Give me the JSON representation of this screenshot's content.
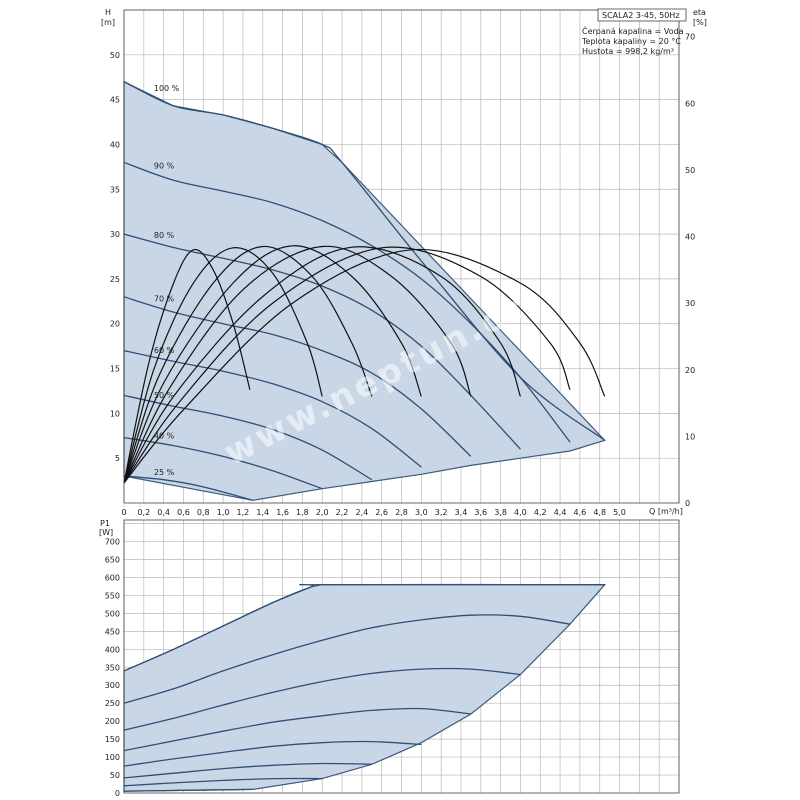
{
  "chart_data": [
    {
      "type": "line",
      "name": "head-chart",
      "xlabel": "Q [m³/h]",
      "ylabel_line1": "H",
      "ylabel_line2": "[m]",
      "y2label_line1": "eta",
      "y2label_line2": "[%]",
      "xlim": [
        0,
        5.6
      ],
      "ylim": [
        0,
        55
      ],
      "y2lim": [
        0,
        74
      ],
      "xticks": [
        "0",
        "0,2",
        "0,4",
        "0,6",
        "0,8",
        "1,0",
        "1,2",
        "1,4",
        "1,6",
        "1,8",
        "2,0",
        "2,2",
        "2,4",
        "2,6",
        "2,8",
        "3,0",
        "3,2",
        "3,4",
        "3,6",
        "3,8",
        "4,0",
        "4,2",
        "4,4",
        "4,6",
        "4,8",
        "5,0"
      ],
      "yticks": [
        "5",
        "10",
        "15",
        "20",
        "25",
        "30",
        "35",
        "40",
        "45",
        "50"
      ],
      "y2ticks": [
        "0",
        "10",
        "20",
        "30",
        "40",
        "50",
        "60",
        "70"
      ],
      "info_box": {
        "title": "SCALA2 3-45, 50Hz",
        "lines": [
          "Čerpaná kapalina = Voda",
          "Teplota kapaliny = 20 °C",
          "Hustota = 998,2 kg/m³"
        ]
      },
      "envelope": {
        "top": [
          [
            0,
            47
          ],
          [
            0.5,
            44.3
          ],
          [
            1.0,
            43.3
          ],
          [
            1.5,
            41.8
          ],
          [
            2.0,
            40
          ],
          [
            2.2,
            38
          ],
          [
            4.85,
            7
          ]
        ],
        "bottom": [
          [
            0,
            3
          ],
          [
            1.3,
            0.3
          ],
          [
            2.0,
            1.6
          ],
          [
            2.5,
            2.4
          ],
          [
            3.0,
            3.2
          ],
          [
            3.5,
            4.2
          ],
          [
            4.0,
            5.0
          ],
          [
            4.5,
            5.8
          ],
          [
            4.85,
            7
          ]
        ]
      },
      "series": [
        {
          "name": "100 %",
          "points": [
            [
              0,
              47
            ],
            [
              0.5,
              44.3
            ],
            [
              1.0,
              43.3
            ],
            [
              1.5,
              41.8
            ],
            [
              2.0,
              40
            ],
            [
              2.2,
              38
            ],
            [
              3.0,
              27
            ],
            [
              4.0,
              14
            ],
            [
              4.85,
              7
            ]
          ]
        },
        {
          "name": "90 %",
          "points": [
            [
              0,
              38
            ],
            [
              0.5,
              36
            ],
            [
              1.0,
              34.8
            ],
            [
              1.5,
              33.5
            ],
            [
              2.0,
              31.5
            ],
            [
              2.5,
              28.7
            ],
            [
              3.0,
              25
            ],
            [
              3.5,
              20
            ],
            [
              4.0,
              14
            ],
            [
              4.5,
              6.8
            ]
          ]
        },
        {
          "name": "80 %",
          "points": [
            [
              0,
              30
            ],
            [
              0.5,
              28.5
            ],
            [
              1.0,
              27.3
            ],
            [
              1.5,
              26
            ],
            [
              2.0,
              24.2
            ],
            [
              2.5,
              21.5
            ],
            [
              3.0,
              17.5
            ],
            [
              3.5,
              12
            ],
            [
              4.0,
              6
            ]
          ]
        },
        {
          "name": "70 %",
          "points": [
            [
              0,
              23
            ],
            [
              0.5,
              21.3
            ],
            [
              1.0,
              20
            ],
            [
              1.5,
              18.8
            ],
            [
              2.0,
              17
            ],
            [
              2.5,
              14.5
            ],
            [
              3.0,
              10.5
            ],
            [
              3.5,
              5.2
            ]
          ]
        },
        {
          "name": "60 %",
          "points": [
            [
              0,
              17
            ],
            [
              0.5,
              15.8
            ],
            [
              1.0,
              14.7
            ],
            [
              1.5,
              13.3
            ],
            [
              2.0,
              11.3
            ],
            [
              2.5,
              8.3
            ],
            [
              3.0,
              4
            ]
          ]
        },
        {
          "name": "50 %",
          "points": [
            [
              0,
              12
            ],
            [
              0.5,
              10.8
            ],
            [
              1.0,
              9.7
            ],
            [
              1.5,
              8.2
            ],
            [
              2.0,
              5.9
            ],
            [
              2.5,
              2.6
            ]
          ]
        },
        {
          "name": "40 %",
          "points": [
            [
              0,
              7.3
            ],
            [
              0.5,
              6.4
            ],
            [
              1.0,
              5.2
            ],
            [
              1.5,
              3.6
            ],
            [
              2.0,
              1.6
            ]
          ]
        },
        {
          "name": "25 %",
          "points": [
            [
              0,
              3
            ],
            [
              0.4,
              2.6
            ],
            [
              0.8,
              1.8
            ],
            [
              1.3,
              0.3
            ]
          ]
        }
      ],
      "efficiency_curves": [
        [
          [
            0,
            3
          ],
          [
            0.25,
            21
          ],
          [
            0.5,
            33
          ],
          [
            0.7,
            38
          ],
          [
            0.9,
            35
          ],
          [
            1.1,
            27
          ],
          [
            1.27,
            17
          ]
        ],
        [
          [
            0,
            3
          ],
          [
            0.3,
            20
          ],
          [
            0.7,
            33
          ],
          [
            1.1,
            38.3
          ],
          [
            1.5,
            34.5
          ],
          [
            1.85,
            24
          ],
          [
            2.0,
            16
          ]
        ],
        [
          [
            0,
            3
          ],
          [
            0.35,
            19
          ],
          [
            0.9,
            33
          ],
          [
            1.4,
            38.5
          ],
          [
            1.9,
            34
          ],
          [
            2.3,
            24
          ],
          [
            2.5,
            16
          ]
        ],
        [
          [
            0,
            3
          ],
          [
            0.4,
            18
          ],
          [
            1.1,
            33
          ],
          [
            1.7,
            38.6
          ],
          [
            2.3,
            34
          ],
          [
            2.8,
            24
          ],
          [
            3.0,
            16
          ]
        ],
        [
          [
            0,
            3
          ],
          [
            0.45,
            17
          ],
          [
            1.2,
            32
          ],
          [
            2.0,
            38.5
          ],
          [
            2.7,
            34
          ],
          [
            3.3,
            24
          ],
          [
            3.5,
            16
          ]
        ],
        [
          [
            0,
            3
          ],
          [
            0.5,
            16
          ],
          [
            1.4,
            31
          ],
          [
            2.3,
            38.4
          ],
          [
            3.2,
            34
          ],
          [
            3.8,
            24
          ],
          [
            4.0,
            16
          ]
        ],
        [
          [
            0,
            3
          ],
          [
            0.55,
            15
          ],
          [
            1.5,
            30
          ],
          [
            2.6,
            38.3
          ],
          [
            3.6,
            34
          ],
          [
            4.3,
            24
          ],
          [
            4.5,
            17
          ]
        ],
        [
          [
            0,
            3
          ],
          [
            0.6,
            14
          ],
          [
            1.7,
            30
          ],
          [
            2.9,
            38
          ],
          [
            4.0,
            33
          ],
          [
            4.6,
            24
          ],
          [
            4.85,
            16
          ]
        ]
      ]
    },
    {
      "type": "line",
      "name": "power-chart",
      "ylabel_line1": "P1",
      "ylabel_line2": "[W]",
      "xlim": [
        0,
        5.6
      ],
      "ylim": [
        0,
        760
      ],
      "yticks": [
        "0",
        "50",
        "100",
        "150",
        "200",
        "250",
        "300",
        "350",
        "400",
        "450",
        "500",
        "550",
        "600",
        "650",
        "700"
      ],
      "envelope": {
        "top": [
          [
            0,
            340
          ],
          [
            0.5,
            400
          ],
          [
            1.0,
            465
          ],
          [
            1.5,
            530
          ],
          [
            1.9,
            575
          ],
          [
            2.0,
            580
          ],
          [
            4.85,
            580
          ]
        ],
        "bottom": [
          [
            0,
            5
          ],
          [
            1.3,
            10
          ],
          [
            2.0,
            40
          ],
          [
            2.5,
            80
          ],
          [
            3.0,
            140
          ],
          [
            3.5,
            220
          ],
          [
            4.0,
            330
          ],
          [
            4.5,
            470
          ],
          [
            4.85,
            580
          ]
        ]
      },
      "series": [
        {
          "name": "100 %",
          "points": [
            [
              0,
              340
            ],
            [
              0.5,
              400
            ],
            [
              1.0,
              465
            ],
            [
              1.5,
              530
            ],
            [
              1.9,
              575
            ],
            [
              2.0,
              580
            ],
            [
              4.85,
              580
            ]
          ]
        },
        {
          "name": "90 %",
          "points": [
            [
              0,
              250
            ],
            [
              0.5,
              290
            ],
            [
              1.0,
              340
            ],
            [
              1.5,
              385
            ],
            [
              2.0,
              425
            ],
            [
              2.5,
              460
            ],
            [
              3.0,
              482
            ],
            [
              3.5,
              495
            ],
            [
              4.0,
              492
            ],
            [
              4.5,
              470
            ]
          ]
        },
        {
          "name": "80 %",
          "points": [
            [
              0,
              175
            ],
            [
              0.5,
              208
            ],
            [
              1.0,
              245
            ],
            [
              1.5,
              280
            ],
            [
              2.0,
              310
            ],
            [
              2.5,
              333
            ],
            [
              3.0,
              345
            ],
            [
              3.5,
              345
            ],
            [
              4.0,
              330
            ]
          ]
        },
        {
          "name": "70 %",
          "points": [
            [
              0,
              118
            ],
            [
              0.5,
              145
            ],
            [
              1.0,
              172
            ],
            [
              1.5,
              197
            ],
            [
              2.0,
              215
            ],
            [
              2.5,
              230
            ],
            [
              3.0,
              235
            ],
            [
              3.5,
              220
            ]
          ]
        },
        {
          "name": "60 %",
          "points": [
            [
              0,
              75
            ],
            [
              0.5,
              95
            ],
            [
              1.0,
              113
            ],
            [
              1.5,
              130
            ],
            [
              2.0,
              140
            ],
            [
              2.5,
              143
            ],
            [
              3.0,
              135
            ]
          ]
        },
        {
          "name": "50 %",
          "points": [
            [
              0,
              42
            ],
            [
              0.5,
              55
            ],
            [
              1.0,
              68
            ],
            [
              1.5,
              77
            ],
            [
              2.0,
              82
            ],
            [
              2.5,
              80
            ]
          ]
        },
        {
          "name": "40 %",
          "points": [
            [
              0,
              20
            ],
            [
              0.5,
              28
            ],
            [
              1.0,
              35
            ],
            [
              1.5,
              40
            ],
            [
              2.0,
              40
            ]
          ]
        },
        {
          "name": "25 %",
          "points": [
            [
              0,
              5
            ],
            [
              0.5,
              7
            ],
            [
              1.0,
              9
            ],
            [
              1.3,
              10
            ]
          ]
        }
      ]
    }
  ]
}
